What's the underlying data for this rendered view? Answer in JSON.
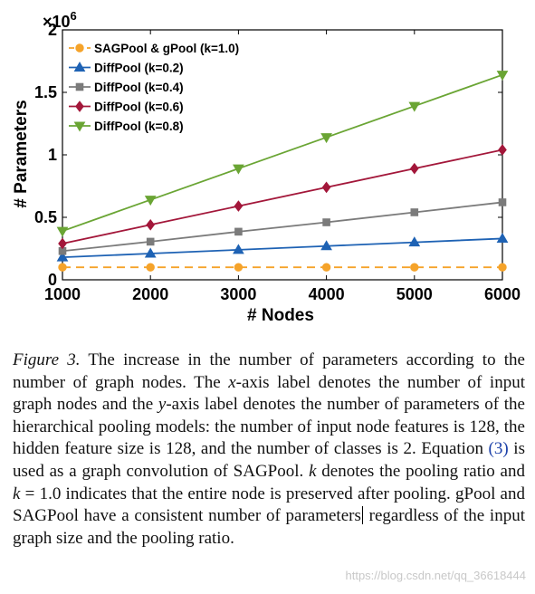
{
  "chart_data": {
    "type": "line",
    "x": [
      1000,
      2000,
      3000,
      4000,
      5000,
      6000
    ],
    "xlim": [
      1000,
      6000
    ],
    "ylim": [
      0,
      2000000
    ],
    "xlabel": "# Nodes",
    "ylabel": "# Parameters",
    "x_ticks": [
      "1000",
      "2000",
      "3000",
      "4000",
      "5000",
      "6000"
    ],
    "y_ticks": [
      {
        "value": 0,
        "label": "0"
      },
      {
        "value": 500000,
        "label": "0.5"
      },
      {
        "value": 1000000,
        "label": "1"
      },
      {
        "value": 1500000,
        "label": "1.5"
      },
      {
        "value": 2000000,
        "label": "2"
      }
    ],
    "y_exponent": "×10",
    "y_exponent_power": "6",
    "legend_position": "top-left",
    "grid": false,
    "series": [
      {
        "name": "SAGPool & gPool (k=1.0)",
        "color": "#f5a32a",
        "marker": "circle",
        "dashed": true,
        "values": [
          100000,
          100000,
          100000,
          100000,
          100000,
          100000
        ]
      },
      {
        "name": "DiffPool (k=0.2)",
        "color": "#1e62b4",
        "marker": "triangle-up",
        "dashed": false,
        "values": [
          180000,
          210000,
          240000,
          270000,
          300000,
          330000
        ]
      },
      {
        "name": "DiffPool (k=0.4)",
        "color": "#7b7b7b",
        "marker": "square",
        "dashed": false,
        "values": [
          230000,
          305000,
          385000,
          460000,
          540000,
          620000
        ]
      },
      {
        "name": "DiffPool (k=0.6)",
        "color": "#a3173a",
        "marker": "diamond",
        "dashed": false,
        "values": [
          290000,
          440000,
          590000,
          740000,
          890000,
          1040000
        ]
      },
      {
        "name": "DiffPool (k=0.8)",
        "color": "#6aa534",
        "marker": "triangle-down",
        "dashed": false,
        "values": [
          390000,
          640000,
          890000,
          1140000,
          1390000,
          1640000
        ]
      }
    ]
  },
  "caption": {
    "figure_label": "Figure 3.",
    "p1": " The increase in the number of parameters according to the number of graph nodes. The ",
    "x_var": "x",
    "p2": "-axis label denotes the number of input graph nodes and the ",
    "y_var": "y",
    "p3": "-axis label denotes the number of parameters of the hierarchical pooling models: the number of input node features is 128, the hidden feature size is 128, and the number of classes is 2.  Equation ",
    "eq_ref": "(3)",
    "p4": " is used as a graph convolution of SAGPool. ",
    "k_var": "k",
    "p5": " denotes the pooling ratio and ",
    "k_var2": "k",
    "p6": " = 1.0 indicates that the entire node is preserved after pooling.  gPool and SAGPool have a consistent number of parameters",
    "p7": " regardless of the input graph size and the pooling ratio."
  },
  "watermark": "https://blog.csdn.net/qq_36618444"
}
